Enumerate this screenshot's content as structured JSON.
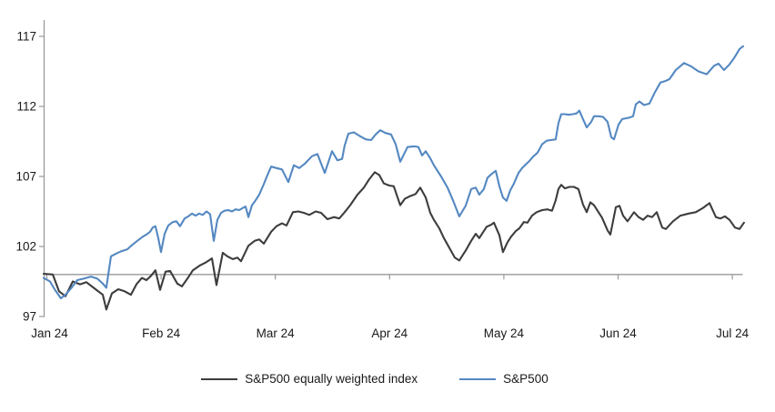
{
  "chart_data": {
    "type": "line",
    "title": "",
    "xlabel": "",
    "ylabel": "",
    "grid": false,
    "legend_position": "bottom-center",
    "x_axis": {
      "tick_labels": [
        "Jan 24",
        "Feb 24",
        "Mar 24",
        "Apr 24",
        "May 24",
        "Jun 24",
        "Jul 24"
      ],
      "range_month_fraction": [
        -0.03,
        6.12
      ],
      "axis_crosses_at_value": 100
    },
    "y_axis": {
      "tick_labels": [
        "97",
        "102",
        "107",
        "112",
        "117"
      ],
      "ticks": [
        97,
        102,
        107,
        112,
        117
      ],
      "range": [
        97,
        118.2
      ]
    },
    "style": {
      "axis_color": "#9a9a9a",
      "text_color": "#1a1a1a",
      "background": "#ffffff"
    },
    "series": [
      {
        "name": "S&P500 equally weighted index",
        "color": "#3d3d3d",
        "points": [
          [
            -0.028,
            100.05
          ],
          [
            0.052,
            100.0
          ],
          [
            0.107,
            98.8
          ],
          [
            0.163,
            98.45
          ],
          [
            0.227,
            99.5
          ],
          [
            0.291,
            99.3
          ],
          [
            0.346,
            99.45
          ],
          [
            0.426,
            98.95
          ],
          [
            0.49,
            98.55
          ],
          [
            0.521,
            97.5
          ],
          [
            0.569,
            98.65
          ],
          [
            0.625,
            98.95
          ],
          [
            0.681,
            98.8
          ],
          [
            0.736,
            98.55
          ],
          [
            0.784,
            99.3
          ],
          [
            0.832,
            99.75
          ],
          [
            0.872,
            99.6
          ],
          [
            0.912,
            99.9
          ],
          [
            0.951,
            100.3
          ],
          [
            0.991,
            98.9
          ],
          [
            1.039,
            100.2
          ],
          [
            1.079,
            100.25
          ],
          [
            1.142,
            99.35
          ],
          [
            1.182,
            99.15
          ],
          [
            1.23,
            99.7
          ],
          [
            1.278,
            100.3
          ],
          [
            1.341,
            100.65
          ],
          [
            1.389,
            100.85
          ],
          [
            1.445,
            101.15
          ],
          [
            1.485,
            99.25
          ],
          [
            1.54,
            101.55
          ],
          [
            1.58,
            101.3
          ],
          [
            1.628,
            101.1
          ],
          [
            1.668,
            101.2
          ],
          [
            1.7,
            100.95
          ],
          [
            1.764,
            102.05
          ],
          [
            1.819,
            102.4
          ],
          [
            1.859,
            102.5
          ],
          [
            1.899,
            102.2
          ],
          [
            1.963,
            103.05
          ],
          [
            2.01,
            103.45
          ],
          [
            2.058,
            103.65
          ],
          [
            2.098,
            103.5
          ],
          [
            2.154,
            104.45
          ],
          [
            2.201,
            104.5
          ],
          [
            2.249,
            104.4
          ],
          [
            2.297,
            104.25
          ],
          [
            2.353,
            104.5
          ],
          [
            2.4,
            104.4
          ],
          [
            2.456,
            103.95
          ],
          [
            2.512,
            104.1
          ],
          [
            2.56,
            104.0
          ],
          [
            2.607,
            104.45
          ],
          [
            2.655,
            104.95
          ],
          [
            2.719,
            105.7
          ],
          [
            2.775,
            106.2
          ],
          [
            2.822,
            106.8
          ],
          [
            2.87,
            107.3
          ],
          [
            2.91,
            107.1
          ],
          [
            2.95,
            106.5
          ],
          [
            2.998,
            106.35
          ],
          [
            3.037,
            106.3
          ],
          [
            3.093,
            104.95
          ],
          [
            3.133,
            105.4
          ],
          [
            3.181,
            105.6
          ],
          [
            3.228,
            105.75
          ],
          [
            3.268,
            106.2
          ],
          [
            3.316,
            105.5
          ],
          [
            3.356,
            104.4
          ],
          [
            3.388,
            103.9
          ],
          [
            3.435,
            103.3
          ],
          [
            3.475,
            102.6
          ],
          [
            3.523,
            101.9
          ],
          [
            3.571,
            101.2
          ],
          [
            3.61,
            101.0
          ],
          [
            3.666,
            101.7
          ],
          [
            3.714,
            102.4
          ],
          [
            3.754,
            102.9
          ],
          [
            3.785,
            102.6
          ],
          [
            3.817,
            103.0
          ],
          [
            3.849,
            103.4
          ],
          [
            3.889,
            103.55
          ],
          [
            3.913,
            103.7
          ],
          [
            3.961,
            102.8
          ],
          [
            3.992,
            101.6
          ],
          [
            4.032,
            102.3
          ],
          [
            4.064,
            102.7
          ],
          [
            4.104,
            103.1
          ],
          [
            4.136,
            103.3
          ],
          [
            4.175,
            103.75
          ],
          [
            4.207,
            103.7
          ],
          [
            4.247,
            104.2
          ],
          [
            4.287,
            104.45
          ],
          [
            4.335,
            104.6
          ],
          [
            4.383,
            104.65
          ],
          [
            4.422,
            104.55
          ],
          [
            4.454,
            105.3
          ],
          [
            4.478,
            106.1
          ],
          [
            4.502,
            106.4
          ],
          [
            4.534,
            106.15
          ],
          [
            4.574,
            106.25
          ],
          [
            4.614,
            106.25
          ],
          [
            4.653,
            106.1
          ],
          [
            4.693,
            105.0
          ],
          [
            4.725,
            104.45
          ],
          [
            4.757,
            105.15
          ],
          [
            4.789,
            104.95
          ],
          [
            4.86,
            104.05
          ],
          [
            4.908,
            103.15
          ],
          [
            4.932,
            102.85
          ],
          [
            4.98,
            104.8
          ],
          [
            5.012,
            104.9
          ],
          [
            5.044,
            104.2
          ],
          [
            5.083,
            103.8
          ],
          [
            5.139,
            104.45
          ],
          [
            5.179,
            104.1
          ],
          [
            5.219,
            103.9
          ],
          [
            5.258,
            104.2
          ],
          [
            5.298,
            104.1
          ],
          [
            5.338,
            104.45
          ],
          [
            5.386,
            103.35
          ],
          [
            5.418,
            103.25
          ],
          [
            5.481,
            103.8
          ],
          [
            5.545,
            104.2
          ],
          [
            5.617,
            104.35
          ],
          [
            5.68,
            104.45
          ],
          [
            5.744,
            104.75
          ],
          [
            5.8,
            105.1
          ],
          [
            5.856,
            104.1
          ],
          [
            5.896,
            104.0
          ],
          [
            5.935,
            104.15
          ],
          [
            5.975,
            103.9
          ],
          [
            6.023,
            103.35
          ],
          [
            6.063,
            103.25
          ],
          [
            6.102,
            103.7
          ]
        ]
      },
      {
        "name": "S&P500",
        "color": "#5488c1",
        "points": [
          [
            -0.028,
            99.75
          ],
          [
            0.028,
            99.5
          ],
          [
            0.068,
            98.95
          ],
          [
            0.123,
            98.3
          ],
          [
            0.163,
            98.55
          ],
          [
            0.211,
            99.0
          ],
          [
            0.267,
            99.6
          ],
          [
            0.322,
            99.7
          ],
          [
            0.386,
            99.85
          ],
          [
            0.442,
            99.7
          ],
          [
            0.49,
            99.35
          ],
          [
            0.521,
            99.05
          ],
          [
            0.561,
            101.3
          ],
          [
            0.609,
            101.5
          ],
          [
            0.649,
            101.65
          ],
          [
            0.705,
            101.8
          ],
          [
            0.752,
            102.15
          ],
          [
            0.792,
            102.4
          ],
          [
            0.84,
            102.7
          ],
          [
            0.872,
            102.85
          ],
          [
            0.904,
            103.05
          ],
          [
            0.927,
            103.35
          ],
          [
            0.951,
            103.45
          ],
          [
            0.975,
            102.6
          ],
          [
            0.999,
            101.6
          ],
          [
            1.031,
            102.9
          ],
          [
            1.063,
            103.5
          ],
          [
            1.103,
            103.75
          ],
          [
            1.134,
            103.8
          ],
          [
            1.166,
            103.45
          ],
          [
            1.206,
            104.0
          ],
          [
            1.238,
            104.15
          ],
          [
            1.27,
            104.35
          ],
          [
            1.302,
            104.2
          ],
          [
            1.333,
            104.35
          ],
          [
            1.365,
            104.25
          ],
          [
            1.397,
            104.5
          ],
          [
            1.429,
            104.3
          ],
          [
            1.461,
            102.4
          ],
          [
            1.493,
            103.9
          ],
          [
            1.525,
            104.4
          ],
          [
            1.556,
            104.55
          ],
          [
            1.588,
            104.6
          ],
          [
            1.62,
            104.5
          ],
          [
            1.652,
            104.65
          ],
          [
            1.684,
            104.6
          ],
          [
            1.716,
            104.75
          ],
          [
            1.74,
            104.85
          ],
          [
            1.764,
            104.1
          ],
          [
            1.795,
            104.95
          ],
          [
            1.827,
            105.3
          ],
          [
            1.859,
            105.7
          ],
          [
            1.899,
            106.45
          ],
          [
            1.931,
            107.1
          ],
          [
            1.963,
            107.7
          ],
          [
            2.01,
            107.6
          ],
          [
            2.058,
            107.5
          ],
          [
            2.114,
            106.6
          ],
          [
            2.162,
            107.8
          ],
          [
            2.209,
            107.6
          ],
          [
            2.257,
            107.9
          ],
          [
            2.321,
            108.45
          ],
          [
            2.369,
            108.6
          ],
          [
            2.432,
            107.25
          ],
          [
            2.496,
            108.8
          ],
          [
            2.544,
            108.15
          ],
          [
            2.584,
            108.25
          ],
          [
            2.607,
            109.2
          ],
          [
            2.639,
            110.05
          ],
          [
            2.687,
            110.15
          ],
          [
            2.735,
            109.9
          ],
          [
            2.791,
            109.65
          ],
          [
            2.838,
            109.6
          ],
          [
            2.878,
            110.0
          ],
          [
            2.918,
            110.3
          ],
          [
            2.966,
            110.1
          ],
          [
            3.013,
            110.0
          ],
          [
            3.053,
            109.3
          ],
          [
            3.093,
            108.05
          ],
          [
            3.157,
            109.1
          ],
          [
            3.213,
            109.15
          ],
          [
            3.252,
            109.1
          ],
          [
            3.284,
            108.5
          ],
          [
            3.316,
            108.8
          ],
          [
            3.356,
            108.3
          ],
          [
            3.388,
            107.8
          ],
          [
            3.451,
            107.0
          ],
          [
            3.507,
            106.2
          ],
          [
            3.555,
            105.3
          ],
          [
            3.61,
            104.15
          ],
          [
            3.666,
            104.9
          ],
          [
            3.714,
            106.1
          ],
          [
            3.754,
            106.2
          ],
          [
            3.785,
            105.7
          ],
          [
            3.825,
            106.1
          ],
          [
            3.857,
            106.9
          ],
          [
            3.889,
            107.15
          ],
          [
            3.929,
            107.4
          ],
          [
            3.961,
            106.3
          ],
          [
            3.992,
            105.5
          ],
          [
            4.024,
            105.25
          ],
          [
            4.056,
            106.0
          ],
          [
            4.088,
            106.5
          ],
          [
            4.128,
            107.25
          ],
          [
            4.16,
            107.6
          ],
          [
            4.191,
            107.85
          ],
          [
            4.223,
            108.1
          ],
          [
            4.255,
            108.4
          ],
          [
            4.295,
            108.7
          ],
          [
            4.335,
            109.3
          ],
          [
            4.375,
            109.55
          ],
          [
            4.414,
            109.6
          ],
          [
            4.454,
            109.65
          ],
          [
            4.478,
            110.8
          ],
          [
            4.502,
            111.45
          ],
          [
            4.534,
            111.45
          ],
          [
            4.566,
            111.4
          ],
          [
            4.606,
            111.45
          ],
          [
            4.637,
            111.5
          ],
          [
            4.661,
            111.7
          ],
          [
            4.693,
            111.1
          ],
          [
            4.725,
            110.5
          ],
          [
            4.765,
            110.9
          ],
          [
            4.789,
            111.3
          ],
          [
            4.828,
            111.3
          ],
          [
            4.868,
            111.25
          ],
          [
            4.908,
            110.9
          ],
          [
            4.94,
            109.8
          ],
          [
            4.964,
            109.65
          ],
          [
            5.004,
            110.7
          ],
          [
            5.036,
            111.1
          ],
          [
            5.068,
            111.15
          ],
          [
            5.099,
            111.2
          ],
          [
            5.131,
            111.3
          ],
          [
            5.155,
            112.15
          ],
          [
            5.187,
            112.35
          ],
          [
            5.227,
            112.1
          ],
          [
            5.274,
            112.2
          ],
          [
            5.322,
            113.0
          ],
          [
            5.37,
            113.7
          ],
          [
            5.41,
            113.8
          ],
          [
            5.45,
            113.95
          ],
          [
            5.505,
            114.6
          ],
          [
            5.577,
            115.1
          ],
          [
            5.641,
            114.85
          ],
          [
            5.704,
            114.5
          ],
          [
            5.776,
            114.3
          ],
          [
            5.84,
            114.9
          ],
          [
            5.879,
            115.05
          ],
          [
            5.927,
            114.6
          ],
          [
            5.975,
            115.0
          ],
          [
            6.015,
            115.45
          ],
          [
            6.063,
            116.1
          ],
          [
            6.095,
            116.3
          ]
        ]
      }
    ]
  },
  "legend": {
    "items": [
      {
        "label": "S&P500 equally weighted index"
      },
      {
        "label": "S&P500"
      }
    ]
  }
}
